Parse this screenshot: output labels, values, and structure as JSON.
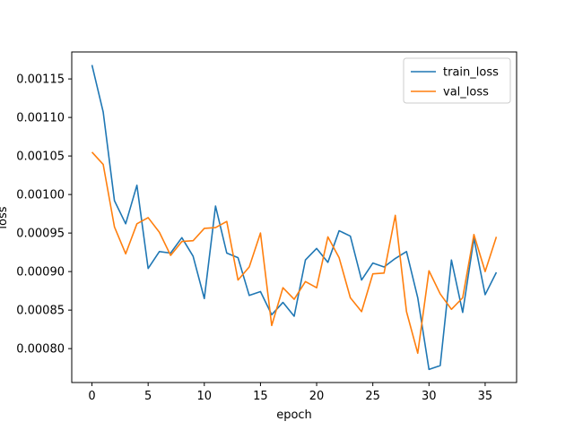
{
  "chart_data": {
    "type": "line",
    "xlabel": "epoch",
    "ylabel": "loss",
    "xlim": [
      -1.8,
      37.8
    ],
    "ylim": [
      0.000756,
      0.001185
    ],
    "xticks": [
      0,
      5,
      10,
      15,
      20,
      25,
      30,
      35
    ],
    "yticks": [
      0.0008,
      0.00085,
      0.0009,
      0.00095,
      0.001,
      0.00105,
      0.0011,
      0.00115
    ],
    "ytick_labels": [
      "0.00080",
      "0.00085",
      "0.00090",
      "0.00095",
      "0.00100",
      "0.00105",
      "0.00110",
      "0.00115"
    ],
    "grid": false,
    "legend_position": "upper right",
    "x": [
      0,
      1,
      2,
      3,
      4,
      5,
      6,
      7,
      8,
      9,
      10,
      11,
      12,
      13,
      14,
      15,
      16,
      17,
      18,
      19,
      20,
      21,
      22,
      23,
      24,
      25,
      26,
      27,
      28,
      29,
      30,
      31,
      32,
      33,
      34,
      35,
      36
    ],
    "series": [
      {
        "name": "train_loss",
        "color": "#1f77b4",
        "values": [
          0.001168,
          0.001107,
          0.000992,
          0.000962,
          0.001012,
          0.000904,
          0.000926,
          0.000924,
          0.000944,
          0.00092,
          0.000865,
          0.000985,
          0.000924,
          0.000918,
          0.000869,
          0.000874,
          0.000844,
          0.00086,
          0.000842,
          0.000915,
          0.00093,
          0.000912,
          0.000953,
          0.000946,
          0.000889,
          0.000911,
          0.000906,
          0.000917,
          0.000926,
          0.000866,
          0.000773,
          0.000778,
          0.000915,
          0.000847,
          0.000943,
          0.00087,
          0.000899
        ]
      },
      {
        "name": "val_loss",
        "color": "#ff7f0e",
        "values": [
          0.001055,
          0.001039,
          0.000958,
          0.000923,
          0.000962,
          0.00097,
          0.000951,
          0.000921,
          0.000939,
          0.00094,
          0.000956,
          0.000957,
          0.000965,
          0.000889,
          0.000906,
          0.00095,
          0.00083,
          0.000879,
          0.000864,
          0.000887,
          0.000879,
          0.000945,
          0.000918,
          0.000866,
          0.000848,
          0.000897,
          0.000898,
          0.000973,
          0.000848,
          0.000794,
          0.000901,
          0.000871,
          0.000851,
          0.000866,
          0.000948,
          0.0009,
          0.000945
        ]
      }
    ]
  }
}
